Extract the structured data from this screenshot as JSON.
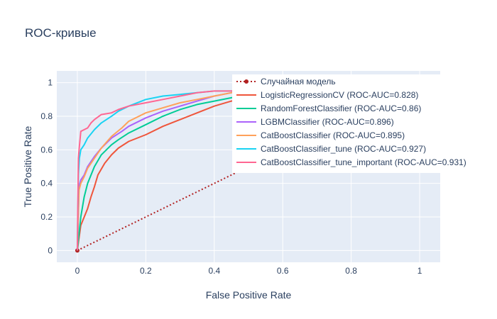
{
  "chart_data": {
    "type": "line",
    "title": "ROC-кривые",
    "xlabel": "False Positive Rate",
    "ylabel": "True Positive Rate",
    "xlim": [
      -0.06,
      1.06
    ],
    "ylim": [
      -0.07,
      1.07
    ],
    "x_ticks": [
      0,
      0.2,
      0.4,
      0.6,
      0.8,
      1
    ],
    "y_ticks": [
      0,
      0.2,
      0.4,
      0.6,
      0.8,
      1
    ],
    "x_tick_labels": [
      "0",
      "0.2",
      "0.4",
      "0.6",
      "0.8",
      "1"
    ],
    "y_tick_labels": [
      "0",
      "0.2",
      "0.4",
      "0.6",
      "0.8",
      "1"
    ],
    "grid": true,
    "legend_position": "top-right",
    "series": [
      {
        "name": "Случайная модель",
        "color": "#b22222",
        "dash": "dot",
        "markers": true,
        "x": [
          0,
          1
        ],
        "y": [
          0,
          1
        ]
      },
      {
        "name": "LogisticRegressionCV (ROC-AUC=0.828)",
        "color": "#ef553b",
        "x": [
          0,
          0.01,
          0.02,
          0.03,
          0.04,
          0.05,
          0.06,
          0.08,
          0.1,
          0.12,
          0.15,
          0.2,
          0.25,
          0.3,
          0.35,
          0.4,
          0.45,
          0.5,
          0.6,
          0.7,
          0.8,
          0.9,
          1
        ],
        "y": [
          0,
          0.15,
          0.2,
          0.25,
          0.32,
          0.38,
          0.45,
          0.52,
          0.57,
          0.61,
          0.65,
          0.69,
          0.74,
          0.78,
          0.82,
          0.86,
          0.89,
          0.91,
          0.94,
          0.96,
          0.98,
          0.99,
          1
        ]
      },
      {
        "name": "RandomForestClassifier (ROC-AUC=0.86)",
        "color": "#00cc96",
        "x": [
          0,
          0.005,
          0.01,
          0.02,
          0.03,
          0.05,
          0.07,
          0.1,
          0.12,
          0.15,
          0.2,
          0.25,
          0.3,
          0.35,
          0.4,
          0.45,
          0.5,
          0.6,
          0.7,
          0.8,
          0.9,
          1
        ],
        "y": [
          0,
          0.1,
          0.2,
          0.32,
          0.4,
          0.5,
          0.57,
          0.63,
          0.66,
          0.7,
          0.75,
          0.8,
          0.84,
          0.87,
          0.89,
          0.91,
          0.93,
          0.95,
          0.97,
          0.98,
          0.99,
          1
        ]
      },
      {
        "name": "LGBMClassifier (ROC-AUC=0.896)",
        "color": "#ab63fa",
        "x": [
          0,
          0.005,
          0.01,
          0.02,
          0.03,
          0.05,
          0.07,
          0.1,
          0.13,
          0.15,
          0.2,
          0.25,
          0.3,
          0.35,
          0.4,
          0.45,
          0.5,
          0.6,
          0.7,
          0.8,
          0.9,
          1
        ],
        "y": [
          0,
          0.38,
          0.42,
          0.45,
          0.5,
          0.56,
          0.61,
          0.67,
          0.71,
          0.74,
          0.79,
          0.83,
          0.86,
          0.89,
          0.92,
          0.94,
          0.95,
          0.97,
          0.98,
          0.99,
          1,
          1
        ]
      },
      {
        "name": "CatBoostClassifier (ROC-AUC=0.895)",
        "color": "#ffa15a",
        "x": [
          0,
          0.005,
          0.01,
          0.02,
          0.03,
          0.05,
          0.07,
          0.1,
          0.13,
          0.15,
          0.2,
          0.25,
          0.3,
          0.35,
          0.4,
          0.45,
          0.5,
          0.6,
          0.7,
          0.8,
          0.9,
          1
        ],
        "y": [
          0,
          0.36,
          0.4,
          0.44,
          0.49,
          0.55,
          0.61,
          0.68,
          0.73,
          0.77,
          0.82,
          0.85,
          0.88,
          0.9,
          0.92,
          0.94,
          0.95,
          0.97,
          0.98,
          0.99,
          1,
          1
        ]
      },
      {
        "name": "CatBoostClassifier_tune (ROC-AUC=0.927)",
        "color": "#19d3f3",
        "x": [
          0,
          0.003,
          0.006,
          0.01,
          0.02,
          0.03,
          0.05,
          0.07,
          0.1,
          0.12,
          0.15,
          0.2,
          0.25,
          0.3,
          0.35,
          0.4,
          0.45,
          0.5,
          0.6,
          0.7,
          0.8,
          0.9,
          1
        ],
        "y": [
          0,
          0.45,
          0.55,
          0.6,
          0.63,
          0.67,
          0.72,
          0.76,
          0.8,
          0.83,
          0.86,
          0.9,
          0.92,
          0.93,
          0.94,
          0.95,
          0.95,
          0.96,
          0.97,
          0.98,
          0.99,
          1,
          1
        ]
      },
      {
        "name": "CatBoostClassifier_tune_important (ROC-AUC=0.931)",
        "color": "#ff6692",
        "x": [
          0,
          0.003,
          0.006,
          0.01,
          0.02,
          0.03,
          0.04,
          0.05,
          0.07,
          0.1,
          0.12,
          0.15,
          0.2,
          0.25,
          0.3,
          0.35,
          0.4,
          0.45,
          0.5,
          0.6,
          0.7,
          0.8,
          0.9,
          1
        ],
        "y": [
          0,
          0.55,
          0.62,
          0.71,
          0.72,
          0.73,
          0.76,
          0.78,
          0.81,
          0.82,
          0.84,
          0.86,
          0.88,
          0.9,
          0.92,
          0.94,
          0.95,
          0.95,
          0.96,
          0.97,
          0.98,
          0.99,
          1,
          1
        ]
      }
    ]
  }
}
